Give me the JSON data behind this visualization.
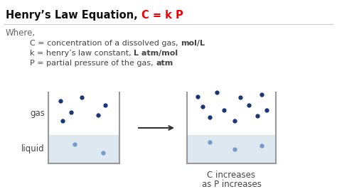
{
  "title_black": "Henry’s Law Equation, ",
  "title_red": "C = k P",
  "where_text": "Where,",
  "line1_normal": "C = concentration of a dissolved gas, ",
  "line1_bold": "mol/L",
  "line2_normal": "k = henry’s law constant, ",
  "line2_bold": "L atm/mol",
  "line3_normal": "P = partial pressure of the gas, ",
  "line3_bold": "atm",
  "caption_line1": "C increases",
  "caption_line2": "as P increases",
  "bg_color": "#ffffff",
  "red_color": "#ee0000",
  "dark_text": "#111111",
  "mid_text": "#444444",
  "light_text": "#666666",
  "dot_dark_color": "#1a3575",
  "dot_light_color": "#7799cc",
  "liquid_color": "#dde8f0",
  "box_edge_color": "#999999",
  "gas_label": "gas",
  "liquid_label": "liquid",
  "title_fontsize": 10.5,
  "body_fontsize": 8.0,
  "where_fontsize": 8.5
}
